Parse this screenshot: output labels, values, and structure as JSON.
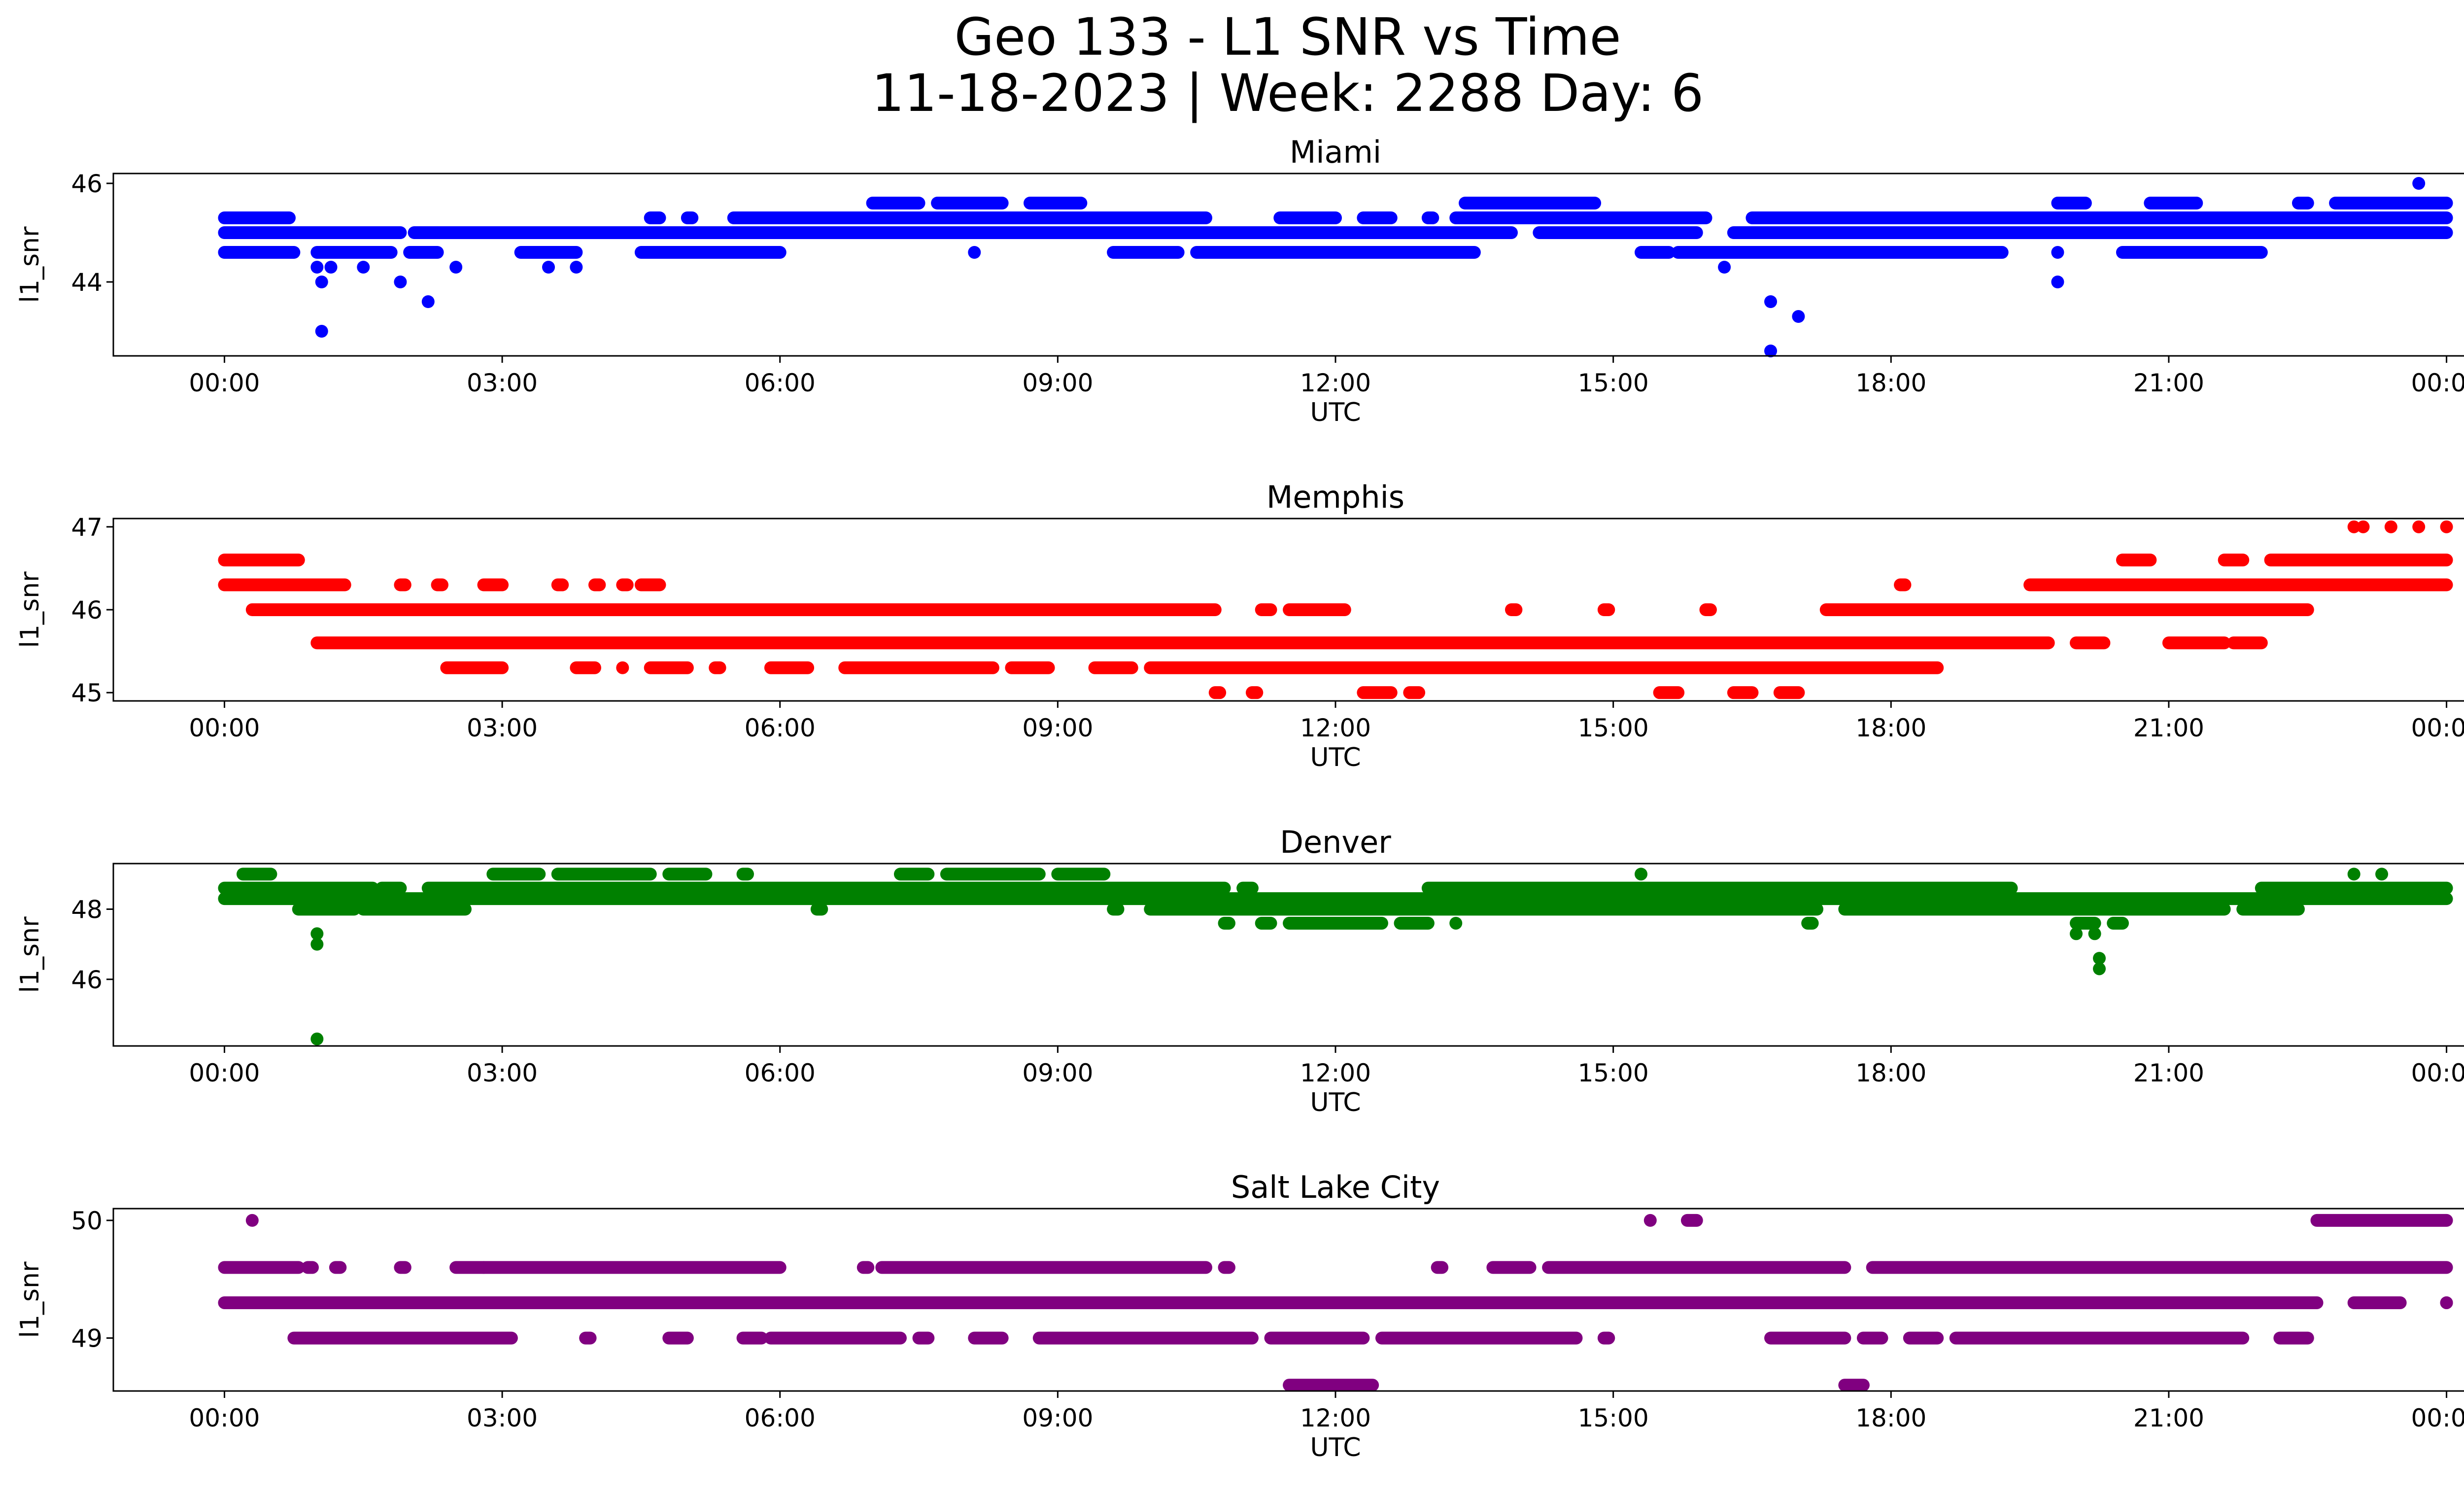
{
  "figure": {
    "title_line1": "Geo 133 - L1 SNR vs Time",
    "title_line2": "11-18-2023 | Week: 2288 Day: 6"
  },
  "chart_data": [
    {
      "type": "scatter",
      "title": "Miami",
      "xlabel": "UTC",
      "ylabel": "l1_snr",
      "color": "#0000ff",
      "x_ticks": [
        "00:00",
        "03:00",
        "06:00",
        "09:00",
        "12:00",
        "15:00",
        "18:00",
        "21:00",
        "00:00"
      ],
      "y_ticks": [
        44,
        46
      ],
      "xlim_hours": [
        -1.2,
        25.2
      ],
      "ylim": [
        42.5,
        46.2
      ],
      "levels": [
        {
          "y": 44.6,
          "segments": [
            [
              0.0,
              0.75
            ],
            [
              1.0,
              1.8
            ],
            [
              2.0,
              2.3
            ],
            [
              3.2,
              3.8
            ],
            [
              4.5,
              6.0
            ],
            [
              9.6,
              10.3
            ],
            [
              10.5,
              13.5
            ],
            [
              15.3,
              15.6
            ],
            [
              15.7,
              19.2
            ],
            [
              20.5,
              22.0
            ]
          ]
        },
        {
          "y": 45.0,
          "segments": [
            [
              0.0,
              1.9
            ],
            [
              2.05,
              13.9
            ],
            [
              14.2,
              15.9
            ],
            [
              16.3,
              24.0
            ]
          ]
        },
        {
          "y": 45.3,
          "segments": [
            [
              0.0,
              0.7
            ],
            [
              4.6,
              4.7
            ],
            [
              5.0,
              5.05
            ],
            [
              5.5,
              10.6
            ],
            [
              11.4,
              12.0
            ],
            [
              12.3,
              12.6
            ],
            [
              13.0,
              13.05
            ],
            [
              13.3,
              16.0
            ],
            [
              16.5,
              24.0
            ]
          ]
        },
        {
          "y": 45.6,
          "segments": [
            [
              7.0,
              7.5
            ],
            [
              7.7,
              8.4
            ],
            [
              8.7,
              9.25
            ],
            [
              13.4,
              14.8
            ],
            [
              19.8,
              20.1
            ],
            [
              20.8,
              21.3
            ],
            [
              22.4,
              22.5
            ],
            [
              22.8,
              24.0
            ]
          ]
        }
      ],
      "points": [
        {
          "x": 1.0,
          "y": 44.3
        },
        {
          "x": 1.15,
          "y": 44.3
        },
        {
          "x": 1.05,
          "y": 44.0
        },
        {
          "x": 1.05,
          "y": 43.0
        },
        {
          "x": 1.5,
          "y": 44.3
        },
        {
          "x": 1.9,
          "y": 44.0
        },
        {
          "x": 2.2,
          "y": 43.6
        },
        {
          "x": 2.5,
          "y": 44.3
        },
        {
          "x": 3.5,
          "y": 44.3
        },
        {
          "x": 3.8,
          "y": 44.3
        },
        {
          "x": 8.1,
          "y": 44.6
        },
        {
          "x": 16.2,
          "y": 44.3
        },
        {
          "x": 16.7,
          "y": 43.6
        },
        {
          "x": 16.7,
          "y": 42.6
        },
        {
          "x": 17.0,
          "y": 43.3
        },
        {
          "x": 19.8,
          "y": 44.6
        },
        {
          "x": 19.8,
          "y": 44.0
        },
        {
          "x": 22.7,
          "y": 45.0
        },
        {
          "x": 23.7,
          "y": 46.0
        }
      ]
    },
    {
      "type": "scatter",
      "title": "Memphis",
      "xlabel": "UTC",
      "ylabel": "l1_snr",
      "color": "#ff0000",
      "x_ticks": [
        "00:00",
        "03:00",
        "06:00",
        "09:00",
        "12:00",
        "15:00",
        "18:00",
        "21:00",
        "00:00"
      ],
      "y_ticks": [
        45,
        46,
        47
      ],
      "xlim_hours": [
        -1.2,
        25.2
      ],
      "ylim": [
        44.9,
        47.1
      ],
      "levels": [
        {
          "y": 46.6,
          "segments": [
            [
              0.0,
              0.8
            ],
            [
              20.5,
              20.8
            ],
            [
              21.6,
              21.8
            ],
            [
              22.1,
              24.0
            ]
          ]
        },
        {
          "y": 46.3,
          "segments": [
            [
              0.0,
              1.3
            ],
            [
              1.9,
              1.95
            ],
            [
              2.3,
              2.35
            ],
            [
              2.8,
              3.0
            ],
            [
              3.6,
              3.65
            ],
            [
              4.0,
              4.05
            ],
            [
              4.3,
              4.35
            ],
            [
              4.5,
              4.7
            ],
            [
              18.1,
              18.15
            ],
            [
              19.5,
              24.0
            ]
          ]
        },
        {
          "y": 46.0,
          "segments": [
            [
              0.3,
              10.7
            ],
            [
              11.2,
              11.3
            ],
            [
              11.5,
              11.9
            ],
            [
              11.9,
              12.1
            ],
            [
              13.9,
              13.95
            ],
            [
              14.9,
              14.95
            ],
            [
              16.0,
              16.05
            ],
            [
              17.3,
              22.5
            ]
          ]
        },
        {
          "y": 45.6,
          "segments": [
            [
              1.0,
              19.7
            ],
            [
              20.0,
              20.3
            ],
            [
              21.0,
              21.6
            ],
            [
              21.7,
              22.0
            ]
          ]
        },
        {
          "y": 45.3,
          "segments": [
            [
              2.4,
              3.0
            ],
            [
              3.8,
              4.0
            ],
            [
              4.3,
              4.3
            ],
            [
              4.6,
              5.0
            ],
            [
              5.3,
              5.35
            ],
            [
              5.9,
              6.3
            ],
            [
              6.7,
              8.3
            ],
            [
              8.5,
              8.9
            ],
            [
              9.4,
              9.8
            ],
            [
              10.0,
              18.5
            ]
          ]
        },
        {
          "y": 45.0,
          "segments": [
            [
              10.7,
              10.75
            ],
            [
              11.1,
              11.15
            ],
            [
              12.3,
              12.6
            ],
            [
              12.8,
              12.9
            ],
            [
              15.5,
              15.7
            ],
            [
              16.3,
              16.5
            ],
            [
              16.8,
              17.0
            ]
          ]
        }
      ],
      "points": [
        {
          "x": 23.0,
          "y": 47.0
        },
        {
          "x": 23.1,
          "y": 47.0
        },
        {
          "x": 23.4,
          "y": 47.0
        },
        {
          "x": 23.7,
          "y": 47.0
        },
        {
          "x": 24.0,
          "y": 47.0
        }
      ]
    },
    {
      "type": "scatter",
      "title": "Denver",
      "xlabel": "UTC",
      "ylabel": "l1_snr",
      "color": "#008000",
      "x_ticks": [
        "00:00",
        "03:00",
        "06:00",
        "09:00",
        "12:00",
        "15:00",
        "18:00",
        "21:00",
        "00:00"
      ],
      "y_ticks": [
        46,
        48
      ],
      "xlim_hours": [
        -1.2,
        25.2
      ],
      "ylim": [
        44.1,
        49.3
      ],
      "levels": [
        {
          "y": 48.6,
          "segments": [
            [
              0.0,
              1.6
            ],
            [
              1.7,
              1.9
            ],
            [
              2.2,
              10.8
            ],
            [
              11.0,
              11.1
            ],
            [
              13.0,
              19.3
            ],
            [
              22.0,
              24.0
            ]
          ]
        },
        {
          "y": 48.3,
          "segments": [
            [
              0.0,
              24.0
            ]
          ]
        },
        {
          "y": 48.0,
          "segments": [
            [
              0.8,
              1.4
            ],
            [
              1.5,
              2.6
            ],
            [
              6.4,
              6.45
            ],
            [
              9.6,
              9.65
            ],
            [
              10.0,
              17.2
            ],
            [
              17.5,
              21.6
            ],
            [
              21.8,
              22.4
            ]
          ]
        },
        {
          "y": 49.0,
          "segments": [
            [
              0.2,
              0.5
            ],
            [
              2.9,
              3.4
            ],
            [
              3.6,
              4.6
            ],
            [
              4.8,
              5.2
            ],
            [
              5.6,
              5.65
            ],
            [
              7.3,
              7.6
            ],
            [
              7.8,
              8.8
            ],
            [
              9.0,
              9.5
            ],
            [
              15.3,
              15.3
            ],
            [
              23.0,
              23.0
            ],
            [
              23.3,
              23.3
            ]
          ]
        },
        {
          "y": 47.6,
          "segments": [
            [
              10.8,
              10.85
            ],
            [
              11.2,
              11.3
            ],
            [
              11.5,
              12.5
            ],
            [
              12.7,
              13.0
            ],
            [
              13.3,
              13.3
            ],
            [
              17.1,
              17.15
            ],
            [
              20.0,
              20.2
            ],
            [
              20.4,
              20.5
            ]
          ]
        }
      ],
      "points": [
        {
          "x": 1.0,
          "y": 47.3
        },
        {
          "x": 1.0,
          "y": 47.0
        },
        {
          "x": 1.0,
          "y": 44.3
        },
        {
          "x": 20.0,
          "y": 47.3
        },
        {
          "x": 20.2,
          "y": 47.3
        },
        {
          "x": 20.25,
          "y": 46.6
        },
        {
          "x": 20.25,
          "y": 46.3
        }
      ]
    },
    {
      "type": "scatter",
      "title": "Salt Lake City",
      "xlabel": "UTC",
      "ylabel": "l1_snr",
      "color": "#800080",
      "x_ticks": [
        "00:00",
        "03:00",
        "06:00",
        "09:00",
        "12:00",
        "15:00",
        "18:00",
        "21:00",
        "00:00"
      ],
      "y_ticks": [
        49,
        50
      ],
      "xlim_hours": [
        -1.2,
        25.2
      ],
      "ylim": [
        48.55,
        50.1
      ],
      "levels": [
        {
          "y": 50.0,
          "segments": [
            [
              0.3,
              0.3
            ],
            [
              15.4,
              15.4
            ],
            [
              15.8,
              15.9
            ],
            [
              22.6,
              24.0
            ]
          ]
        },
        {
          "y": 49.6,
          "segments": [
            [
              0.0,
              0.8
            ],
            [
              0.9,
              0.95
            ],
            [
              1.2,
              1.25
            ],
            [
              1.9,
              1.95
            ],
            [
              2.5,
              2.8
            ],
            [
              2.8,
              6.0
            ],
            [
              6.9,
              6.95
            ],
            [
              7.1,
              10.6
            ],
            [
              10.8,
              10.85
            ],
            [
              13.1,
              13.15
            ],
            [
              13.7,
              14.1
            ],
            [
              14.3,
              17.5
            ],
            [
              17.8,
              24.0
            ]
          ]
        },
        {
          "y": 49.3,
          "segments": [
            [
              0.0,
              22.6
            ],
            [
              23.0,
              23.5
            ],
            [
              24.0,
              24.0
            ]
          ]
        },
        {
          "y": 49.0,
          "segments": [
            [
              0.75,
              3.1
            ],
            [
              3.9,
              3.95
            ],
            [
              4.8,
              5.0
            ],
            [
              5.6,
              5.8
            ],
            [
              5.9,
              7.3
            ],
            [
              7.5,
              7.6
            ],
            [
              8.1,
              8.4
            ],
            [
              8.8,
              11.1
            ],
            [
              11.3,
              12.3
            ],
            [
              12.5,
              14.6
            ],
            [
              14.9,
              14.95
            ],
            [
              16.7,
              17.5
            ],
            [
              17.7,
              17.9
            ],
            [
              18.2,
              18.5
            ],
            [
              18.7,
              21.8
            ],
            [
              22.2,
              22.5
            ]
          ]
        },
        {
          "y": 48.6,
          "segments": [
            [
              11.5,
              12.4
            ],
            [
              17.5,
              17.7
            ]
          ]
        }
      ],
      "points": [
        {
          "x": 24.0,
          "y": 49.3
        }
      ]
    }
  ]
}
